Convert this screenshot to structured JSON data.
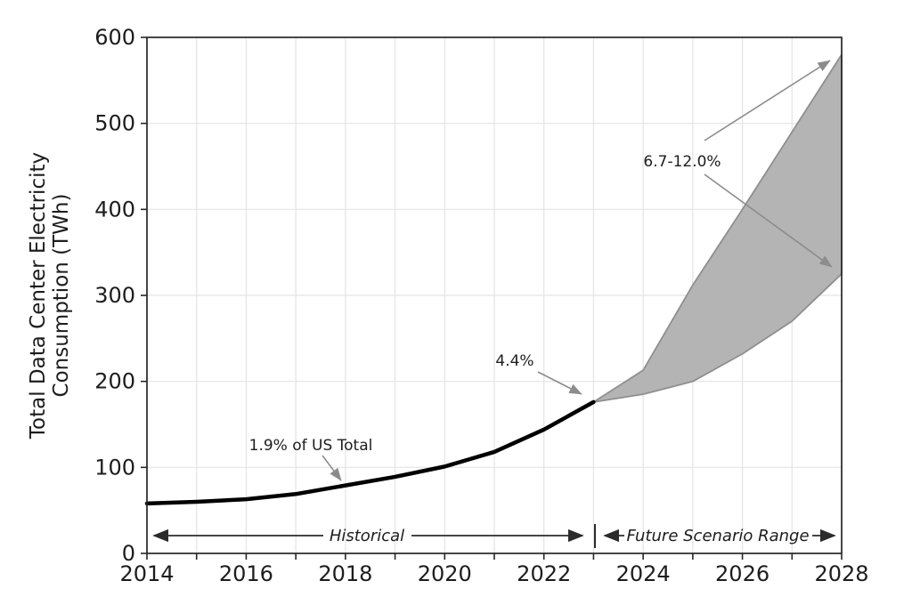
{
  "chart_data": {
    "type": "area",
    "title": "",
    "xlabel": "",
    "ylabel": "Total Data Center Electricity Consumption (TWh)",
    "ylabel_line1": "Total Data Center Electricity",
    "ylabel_line2": "Consumption (TWh)",
    "xlim": [
      2014,
      2028
    ],
    "ylim": [
      0,
      600
    ],
    "grid": true,
    "legend": "none",
    "x_tick_years": [
      2014,
      2015,
      2016,
      2017,
      2018,
      2019,
      2020,
      2021,
      2022,
      2023,
      2024,
      2025,
      2026,
      2027,
      2028
    ],
    "x_labeled_years": [
      2014,
      2016,
      2018,
      2020,
      2022,
      2024,
      2026,
      2028
    ],
    "y_ticks": [
      0,
      100,
      200,
      300,
      400,
      500,
      600
    ],
    "series": [
      {
        "name": "historical",
        "type": "line",
        "color": "#000000",
        "x": [
          2014,
          2015,
          2016,
          2017,
          2018,
          2019,
          2020,
          2021,
          2022,
          2023
        ],
        "values": [
          58,
          60,
          63,
          69,
          79,
          89,
          101,
          118,
          144,
          176
        ]
      },
      {
        "name": "future-scenario-range",
        "type": "band",
        "fill": "#b4b4b4",
        "edge": "#8f8f8f",
        "x": [
          2023,
          2024,
          2025,
          2026,
          2027,
          2028
        ],
        "lower": [
          176,
          185,
          200,
          232,
          270,
          325
        ],
        "upper": [
          176,
          213,
          312,
          400,
          490,
          580
        ]
      }
    ],
    "annotations": [
      {
        "id": "pct-2018",
        "text": "1.9% of US Total",
        "target_year": 2018,
        "target_value": 79
      },
      {
        "id": "pct-2023",
        "text": "4.4%",
        "target_year": 2023,
        "target_value": 176
      },
      {
        "id": "pct-2028",
        "text": "6.7-12.0%",
        "target_year": 2028,
        "target_low": 325,
        "target_high": 580
      },
      {
        "id": "historical-span",
        "text": "Historical",
        "from_year": 2014,
        "to_year": 2023
      },
      {
        "id": "future-span",
        "text": "Future Scenario Range",
        "from_year": 2023,
        "to_year": 2028
      }
    ],
    "colors": {
      "line": "#000000",
      "band_fill": "#b4b4b4",
      "band_edge": "#8f8f8f",
      "grid": "#e4e4e4",
      "axis": "#262626",
      "annotation_arrow": "#8c8c8c",
      "span_arrow": "#2b2b2b"
    }
  }
}
